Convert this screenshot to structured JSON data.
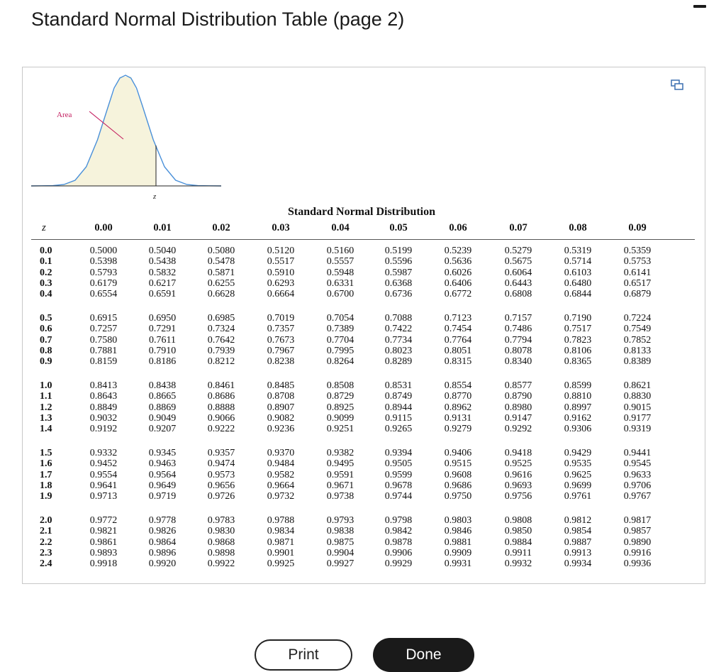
{
  "window": {
    "title": "Standard Normal Distribution Table (page 2)"
  },
  "figure": {
    "area_label": "Area",
    "z_label": "z"
  },
  "table": {
    "caption": "Standard Normal Distribution",
    "z_header": "z",
    "columns": [
      "0.00",
      "0.01",
      "0.02",
      "0.03",
      "0.04",
      "0.05",
      "0.06",
      "0.07",
      "0.08",
      "0.09"
    ],
    "rows": [
      {
        "z": "0.0",
        "v": [
          "0.5000",
          "0.5040",
          "0.5080",
          "0.5120",
          "0.5160",
          "0.5199",
          "0.5239",
          "0.5279",
          "0.5319",
          "0.5359"
        ]
      },
      {
        "z": "0.1",
        "v": [
          "0.5398",
          "0.5438",
          "0.5478",
          "0.5517",
          "0.5557",
          "0.5596",
          "0.5636",
          "0.5675",
          "0.5714",
          "0.5753"
        ]
      },
      {
        "z": "0.2",
        "v": [
          "0.5793",
          "0.5832",
          "0.5871",
          "0.5910",
          "0.5948",
          "0.5987",
          "0.6026",
          "0.6064",
          "0.6103",
          "0.6141"
        ]
      },
      {
        "z": "0.3",
        "v": [
          "0.6179",
          "0.6217",
          "0.6255",
          "0.6293",
          "0.6331",
          "0.6368",
          "0.6406",
          "0.6443",
          "0.6480",
          "0.6517"
        ]
      },
      {
        "z": "0.4",
        "v": [
          "0.6554",
          "0.6591",
          "0.6628",
          "0.6664",
          "0.6700",
          "0.6736",
          "0.6772",
          "0.6808",
          "0.6844",
          "0.6879"
        ]
      },
      {
        "z": "0.5",
        "v": [
          "0.6915",
          "0.6950",
          "0.6985",
          "0.7019",
          "0.7054",
          "0.7088",
          "0.7123",
          "0.7157",
          "0.7190",
          "0.7224"
        ]
      },
      {
        "z": "0.6",
        "v": [
          "0.7257",
          "0.7291",
          "0.7324",
          "0.7357",
          "0.7389",
          "0.7422",
          "0.7454",
          "0.7486",
          "0.7517",
          "0.7549"
        ]
      },
      {
        "z": "0.7",
        "v": [
          "0.7580",
          "0.7611",
          "0.7642",
          "0.7673",
          "0.7704",
          "0.7734",
          "0.7764",
          "0.7794",
          "0.7823",
          "0.7852"
        ]
      },
      {
        "z": "0.8",
        "v": [
          "0.7881",
          "0.7910",
          "0.7939",
          "0.7967",
          "0.7995",
          "0.8023",
          "0.8051",
          "0.8078",
          "0.8106",
          "0.8133"
        ]
      },
      {
        "z": "0.9",
        "v": [
          "0.8159",
          "0.8186",
          "0.8212",
          "0.8238",
          "0.8264",
          "0.8289",
          "0.8315",
          "0.8340",
          "0.8365",
          "0.8389"
        ]
      },
      {
        "z": "1.0",
        "v": [
          "0.8413",
          "0.8438",
          "0.8461",
          "0.8485",
          "0.8508",
          "0.8531",
          "0.8554",
          "0.8577",
          "0.8599",
          "0.8621"
        ]
      },
      {
        "z": "1.1",
        "v": [
          "0.8643",
          "0.8665",
          "0.8686",
          "0.8708",
          "0.8729",
          "0.8749",
          "0.8770",
          "0.8790",
          "0.8810",
          "0.8830"
        ]
      },
      {
        "z": "1.2",
        "v": [
          "0.8849",
          "0.8869",
          "0.8888",
          "0.8907",
          "0.8925",
          "0.8944",
          "0.8962",
          "0.8980",
          "0.8997",
          "0.9015"
        ]
      },
      {
        "z": "1.3",
        "v": [
          "0.9032",
          "0.9049",
          "0.9066",
          "0.9082",
          "0.9099",
          "0.9115",
          "0.9131",
          "0.9147",
          "0.9162",
          "0.9177"
        ]
      },
      {
        "z": "1.4",
        "v": [
          "0.9192",
          "0.9207",
          "0.9222",
          "0.9236",
          "0.9251",
          "0.9265",
          "0.9279",
          "0.9292",
          "0.9306",
          "0.9319"
        ]
      },
      {
        "z": "1.5",
        "v": [
          "0.9332",
          "0.9345",
          "0.9357",
          "0.9370",
          "0.9382",
          "0.9394",
          "0.9406",
          "0.9418",
          "0.9429",
          "0.9441"
        ]
      },
      {
        "z": "1.6",
        "v": [
          "0.9452",
          "0.9463",
          "0.9474",
          "0.9484",
          "0.9495",
          "0.9505",
          "0.9515",
          "0.9525",
          "0.9535",
          "0.9545"
        ]
      },
      {
        "z": "1.7",
        "v": [
          "0.9554",
          "0.9564",
          "0.9573",
          "0.9582",
          "0.9591",
          "0.9599",
          "0.9608",
          "0.9616",
          "0.9625",
          "0.9633"
        ]
      },
      {
        "z": "1.8",
        "v": [
          "0.9641",
          "0.9649",
          "0.9656",
          "0.9664",
          "0.9671",
          "0.9678",
          "0.9686",
          "0.9693",
          "0.9699",
          "0.9706"
        ]
      },
      {
        "z": "1.9",
        "v": [
          "0.9713",
          "0.9719",
          "0.9726",
          "0.9732",
          "0.9738",
          "0.9744",
          "0.9750",
          "0.9756",
          "0.9761",
          "0.9767"
        ]
      },
      {
        "z": "2.0",
        "v": [
          "0.9772",
          "0.9778",
          "0.9783",
          "0.9788",
          "0.9793",
          "0.9798",
          "0.9803",
          "0.9808",
          "0.9812",
          "0.9817"
        ]
      },
      {
        "z": "2.1",
        "v": [
          "0.9821",
          "0.9826",
          "0.9830",
          "0.9834",
          "0.9838",
          "0.9842",
          "0.9846",
          "0.9850",
          "0.9854",
          "0.9857"
        ]
      },
      {
        "z": "2.2",
        "v": [
          "0.9861",
          "0.9864",
          "0.9868",
          "0.9871",
          "0.9875",
          "0.9878",
          "0.9881",
          "0.9884",
          "0.9887",
          "0.9890"
        ]
      },
      {
        "z": "2.3",
        "v": [
          "0.9893",
          "0.9896",
          "0.9898",
          "0.9901",
          "0.9904",
          "0.9906",
          "0.9909",
          "0.9911",
          "0.9913",
          "0.9916"
        ]
      },
      {
        "z": "2.4",
        "v": [
          "0.9918",
          "0.9920",
          "0.9922",
          "0.9925",
          "0.9927",
          "0.9929",
          "0.9931",
          "0.9932",
          "0.9934",
          "0.9936"
        ]
      }
    ]
  },
  "buttons": {
    "print_label": "Print",
    "done_label": "Done"
  },
  "icons": {
    "minimize": "minimize-icon",
    "popout": "popout-icon"
  },
  "colors": {
    "curve": "#4a90d9",
    "shaded_area": "#f6f3dc",
    "area_label": "#c2185b",
    "done_button": "#1a1a1a"
  }
}
